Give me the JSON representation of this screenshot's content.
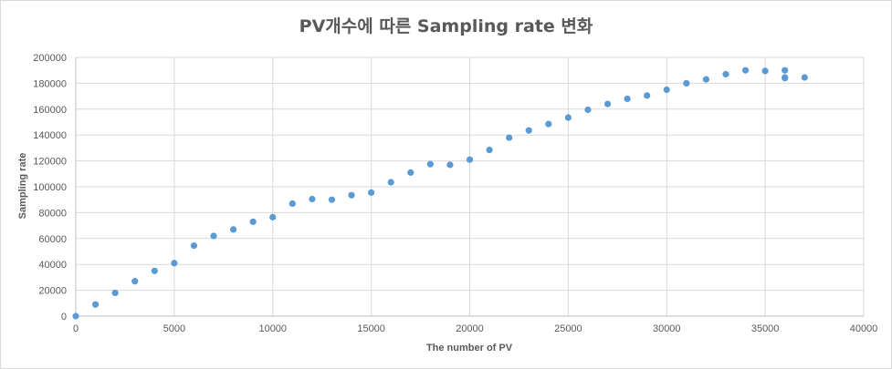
{
  "chart_data": {
    "type": "scatter",
    "title": "PV개수에 따른 Sampling rate 변화",
    "xlabel": "The number of PV",
    "ylabel": "Sampling rate",
    "xlim": [
      0,
      40000
    ],
    "ylim": [
      0,
      200000
    ],
    "x_ticks": [
      "0",
      "5000",
      "10000",
      "15000",
      "20000",
      "25000",
      "30000",
      "35000",
      "40000"
    ],
    "y_ticks": [
      "0",
      "20000",
      "40000",
      "60000",
      "80000",
      "100000",
      "120000",
      "140000",
      "160000",
      "180000",
      "200000"
    ],
    "grid": true,
    "legend": "none",
    "marker_color": "#5b9bd5",
    "points": [
      {
        "x": 0,
        "y": 0
      },
      {
        "x": 1000,
        "y": 9000
      },
      {
        "x": 2000,
        "y": 18000
      },
      {
        "x": 3000,
        "y": 27000
      },
      {
        "x": 4000,
        "y": 35000
      },
      {
        "x": 5000,
        "y": 41000
      },
      {
        "x": 6000,
        "y": 54500
      },
      {
        "x": 7000,
        "y": 62000
      },
      {
        "x": 8000,
        "y": 67000
      },
      {
        "x": 9000,
        "y": 73000
      },
      {
        "x": 10000,
        "y": 76500
      },
      {
        "x": 11000,
        "y": 87000
      },
      {
        "x": 12000,
        "y": 90500
      },
      {
        "x": 13000,
        "y": 90000
      },
      {
        "x": 14000,
        "y": 93500
      },
      {
        "x": 15000,
        "y": 95500
      },
      {
        "x": 16000,
        "y": 103500
      },
      {
        "x": 17000,
        "y": 111000
      },
      {
        "x": 18000,
        "y": 117500
      },
      {
        "x": 19000,
        "y": 117000
      },
      {
        "x": 20000,
        "y": 121000
      },
      {
        "x": 21000,
        "y": 128500
      },
      {
        "x": 22000,
        "y": 138000
      },
      {
        "x": 23000,
        "y": 143500
      },
      {
        "x": 24000,
        "y": 148500
      },
      {
        "x": 25000,
        "y": 153500
      },
      {
        "x": 26000,
        "y": 159500
      },
      {
        "x": 27000,
        "y": 164000
      },
      {
        "x": 28000,
        "y": 168000
      },
      {
        "x": 29000,
        "y": 170500
      },
      {
        "x": 30000,
        "y": 175000
      },
      {
        "x": 31000,
        "y": 180000
      },
      {
        "x": 32000,
        "y": 183000
      },
      {
        "x": 33000,
        "y": 187000
      },
      {
        "x": 34000,
        "y": 190000
      },
      {
        "x": 35000,
        "y": 189500
      },
      {
        "x": 36000,
        "y": 190000
      },
      {
        "x": 36000,
        "y": 184500
      },
      {
        "x": 36000,
        "y": 184000
      },
      {
        "x": 37000,
        "y": 184500
      }
    ]
  }
}
